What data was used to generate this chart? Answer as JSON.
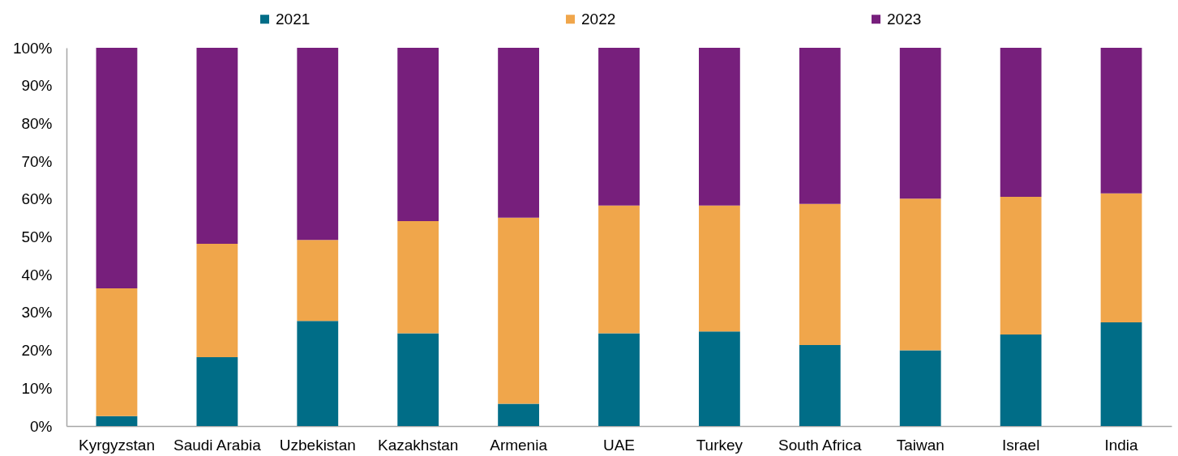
{
  "chart_data": {
    "type": "bar",
    "stacked": true,
    "categories": [
      "Kyrgyzstan",
      "Saudi Arabia",
      "Uzbekistan",
      "Kazakhstan",
      "Armenia",
      "UAE",
      "Turkey",
      "South Africa",
      "Taiwan",
      "Israel",
      "India"
    ],
    "series": [
      {
        "name": "2021",
        "color": "#006d87",
        "values": [
          2.6,
          18.2,
          27.8,
          24.5,
          5.9,
          24.5,
          25.0,
          21.4,
          20.0,
          24.2,
          27.4
        ]
      },
      {
        "name": "2022",
        "color": "#f0a64b",
        "values": [
          33.8,
          30.0,
          21.4,
          29.7,
          49.2,
          33.8,
          33.3,
          37.3,
          40.1,
          36.4,
          34.1
        ]
      },
      {
        "name": "2023",
        "color": "#771f7c",
        "values": [
          63.6,
          51.8,
          50.8,
          45.8,
          44.9,
          41.7,
          41.7,
          41.3,
          39.9,
          39.4,
          38.5
        ]
      }
    ],
    "ylim": [
      0,
      100
    ],
    "yticks": [
      {
        "value": 0,
        "label": "0%"
      },
      {
        "value": 10,
        "label": "10%"
      },
      {
        "value": 20,
        "label": "20%"
      },
      {
        "value": 30,
        "label": "30%"
      },
      {
        "value": 40,
        "label": "40%"
      },
      {
        "value": 50,
        "label": "50%"
      },
      {
        "value": 60,
        "label": "60%"
      },
      {
        "value": 70,
        "label": "70%"
      },
      {
        "value": 80,
        "label": "80%"
      },
      {
        "value": 90,
        "label": "90%"
      },
      {
        "value": 100,
        "label": "100%"
      }
    ],
    "legend": "top",
    "grid": false
  }
}
